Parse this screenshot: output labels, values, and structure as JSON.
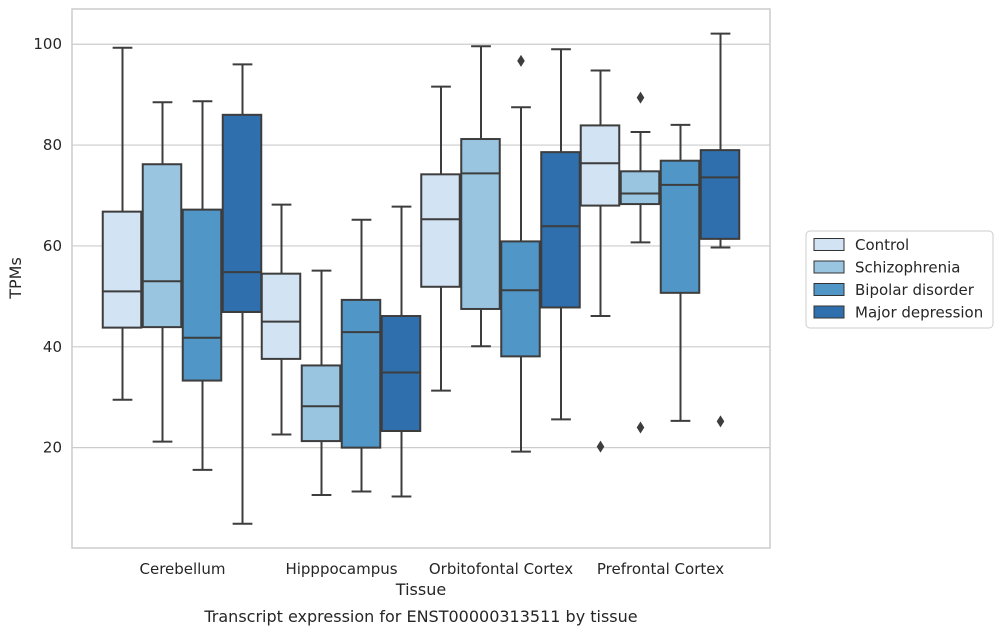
{
  "chart_data": {
    "type": "box",
    "caption": "Transcript expression for ENST00000313511 by tissue",
    "xlabel": "Tissue",
    "ylabel": "TPMs",
    "ylim": [
      0,
      107
    ],
    "yticks": [
      20,
      40,
      60,
      80,
      100
    ],
    "grid": "horizontal",
    "legend_position": "right",
    "categories": [
      "Cerebellum",
      "Hipppocampus",
      "Orbitofontal Cortex",
      "Prefrontal Cortex"
    ],
    "series": [
      {
        "name": "Control",
        "color": "#d2e3f3",
        "boxes": [
          {
            "whisker_low": 29.5,
            "q1": 43.8,
            "median": 51.0,
            "q3": 66.8,
            "whisker_high": 99.3,
            "outliers": []
          },
          {
            "whisker_low": 22.6,
            "q1": 37.6,
            "median": 45.0,
            "q3": 54.5,
            "whisker_high": 68.2,
            "outliers": []
          },
          {
            "whisker_low": 31.3,
            "q1": 51.9,
            "median": 65.3,
            "q3": 74.2,
            "whisker_high": 91.6,
            "outliers": []
          },
          {
            "whisker_low": 46.1,
            "q1": 68.0,
            "median": 76.4,
            "q3": 83.9,
            "whisker_high": 94.8,
            "outliers": [
              20.2
            ]
          }
        ]
      },
      {
        "name": "Schizophrenia",
        "color": "#9ac5e0",
        "boxes": [
          {
            "whisker_low": 21.2,
            "q1": 43.9,
            "median": 53.0,
            "q3": 76.2,
            "whisker_high": 88.5,
            "outliers": []
          },
          {
            "whisker_low": 10.6,
            "q1": 21.3,
            "median": 28.2,
            "q3": 36.3,
            "whisker_high": 55.1,
            "outliers": []
          },
          {
            "whisker_low": 40.1,
            "q1": 47.5,
            "median": 74.4,
            "q3": 81.2,
            "whisker_high": 99.6,
            "outliers": []
          },
          {
            "whisker_low": 60.7,
            "q1": 68.3,
            "median": 70.4,
            "q3": 74.8,
            "whisker_high": 82.6,
            "outliers": [
              24.0,
              89.4
            ]
          }
        ]
      },
      {
        "name": "Bipolar disorder",
        "color": "#5097c8",
        "boxes": [
          {
            "whisker_low": 15.6,
            "q1": 33.3,
            "median": 41.8,
            "q3": 67.2,
            "whisker_high": 88.7,
            "outliers": []
          },
          {
            "whisker_low": 11.3,
            "q1": 20.0,
            "median": 42.9,
            "q3": 49.3,
            "whisker_high": 65.2,
            "outliers": []
          },
          {
            "whisker_low": 19.2,
            "q1": 38.1,
            "median": 51.2,
            "q3": 60.9,
            "whisker_high": 87.5,
            "outliers": [
              96.7
            ]
          },
          {
            "whisker_low": 25.3,
            "q1": 50.7,
            "median": 72.1,
            "q3": 76.9,
            "whisker_high": 84.0,
            "outliers": []
          }
        ]
      },
      {
        "name": "Major depression",
        "color": "#2f6fad",
        "boxes": [
          {
            "whisker_low": 4.9,
            "q1": 46.9,
            "median": 54.8,
            "q3": 86.0,
            "whisker_high": 96.0,
            "outliers": []
          },
          {
            "whisker_low": 10.3,
            "q1": 23.3,
            "median": 34.9,
            "q3": 46.1,
            "whisker_high": 67.8,
            "outliers": []
          },
          {
            "whisker_low": 25.6,
            "q1": 47.8,
            "median": 63.9,
            "q3": 78.6,
            "whisker_high": 99.0,
            "outliers": []
          },
          {
            "whisker_low": 59.7,
            "q1": 61.4,
            "median": 73.6,
            "q3": 79.0,
            "whisker_high": 102.1,
            "outliers": [
              25.2
            ]
          }
        ]
      }
    ]
  }
}
